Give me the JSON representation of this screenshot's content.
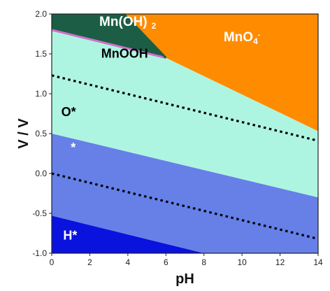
{
  "chart_data": {
    "type": "area",
    "title": "",
    "xlabel": "pH",
    "ylabel": "V / V",
    "xlim": [
      0,
      14
    ],
    "ylim": [
      -1.0,
      2.0
    ],
    "x_ticks": [
      0,
      2,
      4,
      6,
      8,
      10,
      12,
      14
    ],
    "y_ticks": [
      -1.0,
      -0.5,
      0.0,
      0.5,
      1.0,
      1.5,
      2.0
    ],
    "y_tick_labels": [
      "-1.0",
      "-0.5",
      "0.0",
      "0.5",
      "1.0",
      "1.5",
      "2.0"
    ],
    "x_tick_labels": [
      "0",
      "2",
      "4",
      "6",
      "8",
      "10",
      "12",
      "14"
    ],
    "grid": false,
    "regions": [
      {
        "name": "Mn(OH)",
        "subscript": "2",
        "color": "#1b5e45",
        "label_color": "#ffffff",
        "polygon": [
          [
            0,
            2.0
          ],
          [
            3.8,
            2.0
          ],
          [
            6.0,
            1.45
          ],
          [
            0,
            1.8
          ]
        ],
        "label_at": [
          2.5,
          1.85
        ]
      },
      {
        "name": "MnO",
        "subscript": "4",
        "superscript": "-",
        "color": "#ff8c00",
        "label_color": "#ffffff",
        "polygon": [
          [
            3.8,
            2.0
          ],
          [
            14,
            2.0
          ],
          [
            14,
            0.53
          ],
          [
            6.0,
            1.45
          ]
        ],
        "label_at": [
          10,
          1.66
        ]
      },
      {
        "name": "MnOOH",
        "color": "#aef5e1",
        "label_color": "#000000",
        "polygon": [
          [
            0,
            1.8
          ],
          [
            6.0,
            1.45
          ],
          [
            14,
            0.53
          ],
          [
            14,
            -0.3
          ],
          [
            0,
            0.5
          ]
        ],
        "label_at": [
          2.6,
          1.45
        ]
      },
      {
        "name": "O*",
        "color": "#aef5e1",
        "label_color": "#000000",
        "label_at": [
          0.5,
          0.72
        ]
      },
      {
        "name": "*",
        "color": "#6680e8",
        "label_color": "#ffffff",
        "polygon": [
          [
            0,
            0.5
          ],
          [
            14,
            -0.3
          ],
          [
            14,
            -1.0
          ],
          [
            8.0,
            -1.0
          ],
          [
            0,
            -0.53
          ]
        ],
        "label_at": [
          1.0,
          0.27
        ]
      },
      {
        "name": "H*",
        "color": "#0a12dd",
        "label_color": "#ffffff",
        "polygon": [
          [
            0,
            -0.53
          ],
          [
            8.0,
            -1.0
          ],
          [
            0,
            -1.0
          ]
        ],
        "label_at": [
          0.6,
          -0.83
        ]
      }
    ],
    "boundary_lines": [
      {
        "style": "solid",
        "color": "#d070c8",
        "points": [
          [
            0,
            1.8
          ],
          [
            6.0,
            1.45
          ]
        ]
      },
      {
        "style": "solid",
        "color": "#1b5e45",
        "points": [
          [
            3.8,
            2.0
          ],
          [
            6.0,
            1.45
          ]
        ]
      }
    ],
    "series": [
      {
        "style": "dotted",
        "color": "#000000",
        "x": [
          0,
          14
        ],
        "y": [
          1.23,
          0.41
        ]
      },
      {
        "style": "dotted",
        "color": "#000000",
        "x": [
          0,
          14
        ],
        "y": [
          0.0,
          -0.82
        ]
      }
    ]
  }
}
